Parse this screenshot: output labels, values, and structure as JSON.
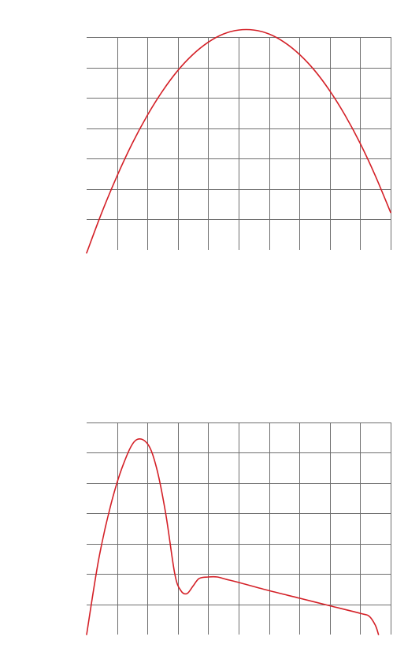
{
  "chart_data": [
    {
      "type": "line",
      "title": "",
      "xlabel": "",
      "ylabel": "",
      "grid": true,
      "legend": "none",
      "xlim": [
        0,
        10
      ],
      "ylim": [
        0,
        7
      ],
      "series": [
        {
          "color": "#d42027",
          "x": [
            0,
            0.5,
            1,
            1.5,
            2,
            2.5,
            3,
            3.5,
            4,
            4.5,
            5,
            5.5,
            6,
            6.5,
            7,
            7.5,
            8,
            8.5,
            9,
            9.5,
            10
          ],
          "y": [
            -0.1,
            1.23,
            2.43,
            3.5,
            4.43,
            5.23,
            5.9,
            6.43,
            6.83,
            7.1,
            7.23,
            7.23,
            7.1,
            6.83,
            6.43,
            5.9,
            5.23,
            4.43,
            3.5,
            2.43,
            1.23
          ]
        }
      ]
    },
    {
      "type": "line",
      "title": "",
      "xlabel": "",
      "ylabel": "",
      "grid": true,
      "legend": "none",
      "xlim": [
        0,
        10
      ],
      "ylim": [
        0,
        7
      ],
      "series": [
        {
          "color": "#d42027",
          "x": [
            0,
            0.4,
            0.8,
            1.2,
            1.6,
            2.0,
            2.3,
            2.6,
            2.9,
            3.1,
            3.3,
            3.5,
            3.7,
            4.0,
            4.3,
            4.6,
            5.0,
            6.0,
            7.0,
            8.0,
            9.0,
            9.3,
            9.5,
            9.6
          ],
          "y": [
            0,
            2.5,
            4.3,
            5.6,
            6.4,
            6.3,
            5.5,
            4.0,
            2.0,
            1.45,
            1.35,
            1.6,
            1.85,
            1.9,
            1.9,
            1.82,
            1.72,
            1.45,
            1.2,
            0.95,
            0.7,
            0.6,
            0.3,
            0
          ]
        }
      ]
    }
  ]
}
